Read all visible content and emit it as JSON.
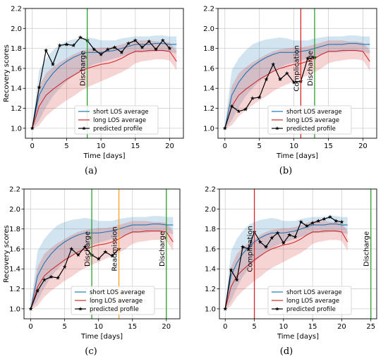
{
  "chart_data": [
    {
      "panel": "(a)",
      "type": "line",
      "xlabel": "Time [days]",
      "ylabel": "Recovery scores",
      "xlim": [
        -1,
        22
      ],
      "ylim": [
        0.9,
        2.2
      ],
      "xticks": [
        0,
        5,
        10,
        15,
        20
      ],
      "yticks": [
        1.0,
        1.2,
        1.4,
        1.6,
        1.8,
        2.0,
        2.2
      ],
      "legend_position": "lower-right",
      "series": [
        {
          "name": "short LOS average",
          "color": "#1f77b4",
          "x": [
            0,
            1,
            2,
            3,
            4,
            5,
            6,
            7,
            8,
            9,
            10,
            11,
            12,
            13,
            14,
            15,
            16,
            17,
            18,
            19,
            20,
            21
          ],
          "values": [
            1.0,
            1.33,
            1.46,
            1.55,
            1.62,
            1.67,
            1.71,
            1.74,
            1.76,
            1.76,
            1.76,
            1.77,
            1.78,
            1.8,
            1.82,
            1.84,
            1.84,
            1.84,
            1.85,
            1.85,
            1.84,
            1.84
          ],
          "band_low": [
            0.99,
            1.08,
            1.21,
            1.32,
            1.4,
            1.47,
            1.52,
            1.57,
            1.61,
            1.64,
            1.66,
            1.68,
            1.7,
            1.72,
            1.74,
            1.76,
            1.76,
            1.76,
            1.77,
            1.77,
            1.76,
            1.75
          ],
          "band_high": [
            1.02,
            1.58,
            1.7,
            1.78,
            1.84,
            1.87,
            1.89,
            1.9,
            1.91,
            1.9,
            1.88,
            1.88,
            1.88,
            1.9,
            1.91,
            1.92,
            1.92,
            1.92,
            1.93,
            1.93,
            1.92,
            1.92
          ]
        },
        {
          "name": "long LOS average",
          "color": "#d62728",
          "x": [
            0,
            1,
            2,
            3,
            4,
            5,
            6,
            7,
            8,
            9,
            10,
            11,
            12,
            13,
            14,
            15,
            16,
            17,
            18,
            19,
            20,
            21
          ],
          "values": [
            1.0,
            1.22,
            1.33,
            1.39,
            1.44,
            1.49,
            1.53,
            1.57,
            1.6,
            1.62,
            1.64,
            1.65,
            1.67,
            1.7,
            1.74,
            1.77,
            1.77,
            1.78,
            1.78,
            1.78,
            1.77,
            1.67
          ],
          "band_low": [
            0.99,
            1.03,
            1.12,
            1.18,
            1.23,
            1.28,
            1.32,
            1.37,
            1.41,
            1.44,
            1.47,
            1.5,
            1.53,
            1.56,
            1.6,
            1.65,
            1.67,
            1.68,
            1.69,
            1.69,
            1.68,
            1.58
          ],
          "band_high": [
            1.02,
            1.42,
            1.55,
            1.61,
            1.66,
            1.7,
            1.74,
            1.77,
            1.79,
            1.8,
            1.81,
            1.81,
            1.82,
            1.84,
            1.86,
            1.88,
            1.88,
            1.88,
            1.87,
            1.87,
            1.86,
            1.78
          ]
        },
        {
          "name": "predicted profile",
          "color": "#000000",
          "marker": "*",
          "x": [
            0,
            1,
            2,
            3,
            4,
            5,
            6,
            7,
            8,
            9,
            10,
            11,
            12,
            13,
            14,
            15,
            16,
            17,
            18,
            19,
            20
          ],
          "values": [
            1.0,
            1.41,
            1.78,
            1.64,
            1.83,
            1.84,
            1.83,
            1.91,
            1.88,
            1.79,
            1.74,
            1.79,
            1.81,
            1.76,
            1.85,
            1.88,
            1.81,
            1.87,
            1.79,
            1.88,
            1.8
          ]
        }
      ],
      "events": [
        {
          "label": "Discharge",
          "x": 8,
          "color": "#2ca02c"
        }
      ]
    },
    {
      "panel": "(b)",
      "type": "line",
      "xlabel": "Time [days]",
      "ylabel": "",
      "xlim": [
        -1,
        22
      ],
      "ylim": [
        0.9,
        2.2
      ],
      "xticks": [
        0,
        5,
        10,
        15,
        20
      ],
      "yticks": [
        1.0,
        1.2,
        1.4,
        1.6,
        1.8,
        2.0,
        2.2
      ],
      "legend_position": "lower-right",
      "series": [
        {
          "name": "short LOS average",
          "color": "#1f77b4",
          "x": [
            0,
            1,
            2,
            3,
            4,
            5,
            6,
            7,
            8,
            9,
            10,
            11,
            12,
            13,
            14,
            15,
            16,
            17,
            18,
            19,
            20,
            21
          ],
          "values": [
            1.0,
            1.33,
            1.46,
            1.55,
            1.62,
            1.67,
            1.71,
            1.74,
            1.76,
            1.76,
            1.76,
            1.77,
            1.78,
            1.8,
            1.82,
            1.84,
            1.84,
            1.84,
            1.85,
            1.85,
            1.84,
            1.84
          ],
          "band_low": [
            0.99,
            1.08,
            1.21,
            1.32,
            1.4,
            1.47,
            1.52,
            1.57,
            1.61,
            1.64,
            1.66,
            1.68,
            1.7,
            1.72,
            1.74,
            1.76,
            1.76,
            1.76,
            1.77,
            1.77,
            1.76,
            1.75
          ],
          "band_high": [
            1.02,
            1.58,
            1.7,
            1.78,
            1.84,
            1.87,
            1.89,
            1.9,
            1.91,
            1.9,
            1.88,
            1.88,
            1.88,
            1.9,
            1.91,
            1.92,
            1.92,
            1.92,
            1.93,
            1.93,
            1.92,
            1.92
          ]
        },
        {
          "name": "long LOS average",
          "color": "#d62728",
          "x": [
            0,
            1,
            2,
            3,
            4,
            5,
            6,
            7,
            8,
            9,
            10,
            11,
            12,
            13,
            14,
            15,
            16,
            17,
            18,
            19,
            20,
            21
          ],
          "values": [
            1.0,
            1.22,
            1.33,
            1.39,
            1.44,
            1.49,
            1.53,
            1.57,
            1.6,
            1.62,
            1.64,
            1.65,
            1.67,
            1.7,
            1.74,
            1.77,
            1.77,
            1.78,
            1.78,
            1.78,
            1.77,
            1.67
          ],
          "band_low": [
            0.99,
            1.03,
            1.12,
            1.18,
            1.23,
            1.28,
            1.32,
            1.37,
            1.41,
            1.44,
            1.47,
            1.5,
            1.53,
            1.56,
            1.6,
            1.65,
            1.67,
            1.68,
            1.69,
            1.69,
            1.68,
            1.58
          ],
          "band_high": [
            1.02,
            1.42,
            1.55,
            1.61,
            1.66,
            1.7,
            1.74,
            1.77,
            1.79,
            1.8,
            1.81,
            1.81,
            1.82,
            1.84,
            1.86,
            1.88,
            1.88,
            1.88,
            1.87,
            1.87,
            1.86,
            1.78
          ]
        },
        {
          "name": "predicted profile",
          "color": "#000000",
          "marker": "*",
          "x": [
            0,
            1,
            2,
            3,
            4,
            5,
            6,
            7,
            8,
            9,
            10,
            11,
            12,
            13
          ],
          "values": [
            1.0,
            1.22,
            1.17,
            1.19,
            1.3,
            1.31,
            1.49,
            1.64,
            1.49,
            1.55,
            1.46,
            1.47,
            1.7,
            1.71
          ]
        }
      ],
      "events": [
        {
          "label": "Complication",
          "x": 11,
          "color": "#d62728"
        },
        {
          "label": "Discharge",
          "x": 13,
          "color": "#2ca02c"
        }
      ]
    },
    {
      "panel": "(c)",
      "type": "line",
      "xlabel": "Time [days]",
      "ylabel": "Recovery scores",
      "xlim": [
        -1,
        22
      ],
      "ylim": [
        0.9,
        2.2
      ],
      "xticks": [
        0,
        5,
        10,
        15,
        20
      ],
      "yticks": [
        1.0,
        1.2,
        1.4,
        1.6,
        1.8,
        2.0,
        2.2
      ],
      "legend_position": "lower-right",
      "series": [
        {
          "name": "short LOS average",
          "color": "#1f77b4",
          "x": [
            0,
            1,
            2,
            3,
            4,
            5,
            6,
            7,
            8,
            9,
            10,
            11,
            12,
            13,
            14,
            15,
            16,
            17,
            18,
            19,
            20,
            21
          ],
          "values": [
            1.0,
            1.33,
            1.46,
            1.55,
            1.62,
            1.67,
            1.71,
            1.74,
            1.76,
            1.76,
            1.76,
            1.77,
            1.78,
            1.8,
            1.82,
            1.84,
            1.84,
            1.84,
            1.85,
            1.85,
            1.84,
            1.84
          ],
          "band_low": [
            0.99,
            1.08,
            1.21,
            1.32,
            1.4,
            1.47,
            1.52,
            1.57,
            1.61,
            1.64,
            1.66,
            1.68,
            1.7,
            1.72,
            1.74,
            1.76,
            1.76,
            1.76,
            1.77,
            1.77,
            1.76,
            1.75
          ],
          "band_high": [
            1.02,
            1.58,
            1.7,
            1.78,
            1.84,
            1.87,
            1.89,
            1.9,
            1.91,
            1.9,
            1.88,
            1.88,
            1.88,
            1.9,
            1.91,
            1.92,
            1.92,
            1.92,
            1.93,
            1.93,
            1.92,
            1.92
          ]
        },
        {
          "name": "long LOS average",
          "color": "#d62728",
          "x": [
            0,
            1,
            2,
            3,
            4,
            5,
            6,
            7,
            8,
            9,
            10,
            11,
            12,
            13,
            14,
            15,
            16,
            17,
            18,
            19,
            20,
            21
          ],
          "values": [
            1.0,
            1.22,
            1.33,
            1.39,
            1.44,
            1.49,
            1.53,
            1.57,
            1.6,
            1.62,
            1.64,
            1.65,
            1.67,
            1.7,
            1.74,
            1.77,
            1.77,
            1.78,
            1.78,
            1.78,
            1.77,
            1.67
          ],
          "band_low": [
            0.99,
            1.03,
            1.12,
            1.18,
            1.23,
            1.28,
            1.32,
            1.37,
            1.41,
            1.44,
            1.47,
            1.5,
            1.53,
            1.56,
            1.6,
            1.65,
            1.67,
            1.68,
            1.69,
            1.69,
            1.68,
            1.58
          ],
          "band_high": [
            1.02,
            1.42,
            1.55,
            1.61,
            1.66,
            1.7,
            1.74,
            1.77,
            1.79,
            1.8,
            1.81,
            1.81,
            1.82,
            1.84,
            1.86,
            1.88,
            1.88,
            1.88,
            1.87,
            1.87,
            1.86,
            1.78
          ]
        },
        {
          "name": "predicted profile",
          "color": "#000000",
          "marker": "*",
          "x": [
            0,
            1,
            2,
            3,
            4,
            5,
            6,
            7,
            8,
            9,
            10,
            11,
            12,
            13
          ],
          "values": [
            1.0,
            1.18,
            1.29,
            1.32,
            1.31,
            1.42,
            1.6,
            1.54,
            1.62,
            1.54,
            1.5,
            1.57,
            1.53,
            1.6
          ]
        }
      ],
      "events": [
        {
          "label": "Discharge",
          "x": 9,
          "color": "#2ca02c"
        },
        {
          "label": "Readmission",
          "x": 13,
          "color": "#ff9f1c"
        },
        {
          "label": "Discharge",
          "x": 20,
          "color": "#2ca02c"
        }
      ]
    },
    {
      "panel": "(d)",
      "type": "line",
      "xlabel": "Time [days]",
      "ylabel": "",
      "xlim": [
        -1,
        26
      ],
      "ylim": [
        0.9,
        2.2
      ],
      "xticks": [
        0,
        5,
        10,
        15,
        20,
        25
      ],
      "yticks": [
        1.0,
        1.2,
        1.4,
        1.6,
        1.8,
        2.0,
        2.2
      ],
      "legend_position": "lower-right",
      "series": [
        {
          "name": "short LOS average",
          "color": "#1f77b4",
          "x": [
            0,
            1,
            2,
            3,
            4,
            5,
            6,
            7,
            8,
            9,
            10,
            11,
            12,
            13,
            14,
            15,
            16,
            17,
            18,
            19,
            20,
            21
          ],
          "values": [
            1.0,
            1.33,
            1.46,
            1.55,
            1.62,
            1.67,
            1.71,
            1.74,
            1.76,
            1.76,
            1.76,
            1.77,
            1.78,
            1.8,
            1.82,
            1.84,
            1.84,
            1.84,
            1.85,
            1.85,
            1.84,
            1.84
          ],
          "band_low": [
            0.99,
            1.08,
            1.21,
            1.32,
            1.4,
            1.47,
            1.52,
            1.57,
            1.61,
            1.64,
            1.66,
            1.68,
            1.7,
            1.72,
            1.74,
            1.76,
            1.76,
            1.76,
            1.77,
            1.77,
            1.76,
            1.75
          ],
          "band_high": [
            1.02,
            1.58,
            1.7,
            1.78,
            1.84,
            1.87,
            1.89,
            1.9,
            1.91,
            1.9,
            1.88,
            1.88,
            1.88,
            1.9,
            1.91,
            1.92,
            1.92,
            1.92,
            1.93,
            1.93,
            1.92,
            1.92
          ]
        },
        {
          "name": "long LOS average",
          "color": "#d62728",
          "x": [
            0,
            1,
            2,
            3,
            4,
            5,
            6,
            7,
            8,
            9,
            10,
            11,
            12,
            13,
            14,
            15,
            16,
            17,
            18,
            19,
            20,
            21
          ],
          "values": [
            1.0,
            1.22,
            1.33,
            1.39,
            1.44,
            1.49,
            1.53,
            1.57,
            1.6,
            1.62,
            1.64,
            1.65,
            1.67,
            1.7,
            1.74,
            1.77,
            1.77,
            1.78,
            1.78,
            1.78,
            1.77,
            1.67
          ],
          "band_low": [
            0.99,
            1.03,
            1.12,
            1.18,
            1.23,
            1.28,
            1.32,
            1.37,
            1.41,
            1.44,
            1.47,
            1.5,
            1.53,
            1.56,
            1.6,
            1.65,
            1.67,
            1.68,
            1.69,
            1.69,
            1.68,
            1.58
          ],
          "band_high": [
            1.02,
            1.42,
            1.55,
            1.61,
            1.66,
            1.7,
            1.74,
            1.77,
            1.79,
            1.8,
            1.81,
            1.81,
            1.82,
            1.84,
            1.86,
            1.88,
            1.88,
            1.88,
            1.87,
            1.87,
            1.86,
            1.78
          ]
        },
        {
          "name": "predicted profile",
          "color": "#000000",
          "marker": "*",
          "x": [
            0,
            1,
            2,
            3,
            4,
            5,
            6,
            7,
            8,
            9,
            10,
            11,
            12,
            13,
            14,
            15,
            16,
            17,
            18,
            19,
            20
          ],
          "values": [
            1.0,
            1.39,
            1.29,
            1.62,
            1.6,
            1.77,
            1.67,
            1.62,
            1.71,
            1.76,
            1.66,
            1.74,
            1.72,
            1.87,
            1.83,
            1.86,
            1.88,
            1.9,
            1.92,
            1.88,
            1.87
          ]
        }
      ],
      "events": [
        {
          "label": "Complication",
          "x": 5,
          "color": "#d62728"
        },
        {
          "label": "Discharge",
          "x": 25,
          "color": "#2ca02c"
        }
      ]
    }
  ]
}
